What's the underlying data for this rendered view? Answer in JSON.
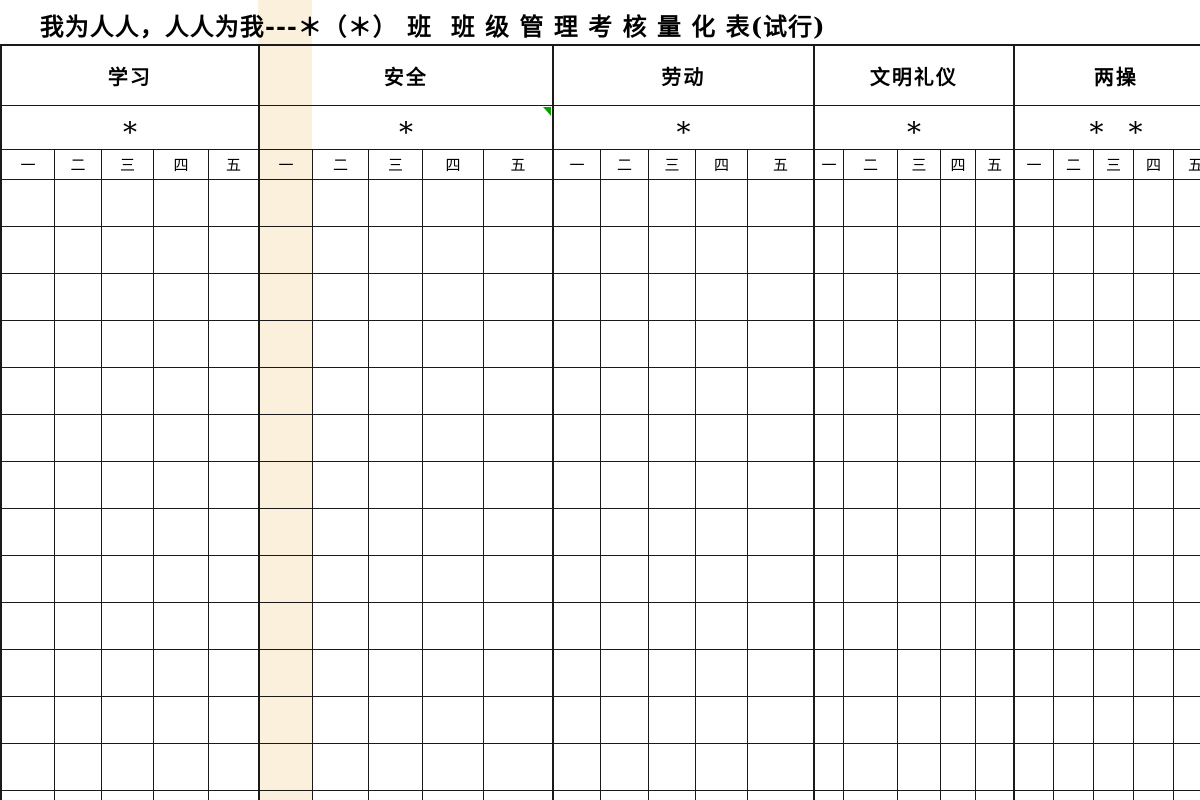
{
  "sheet_title": "我为人人，人人为我---＊（＊） 班  班 级 管 理 考 核 量 化 表(试行)",
  "table": {
    "column_groups": [
      {
        "label": "学习",
        "star": "*"
      },
      {
        "label": "安全",
        "star": "*"
      },
      {
        "label": "劳动",
        "star": "*"
      },
      {
        "label": "文明礼仪",
        "star": "*"
      },
      {
        "label": "两操",
        "star": "* *"
      }
    ],
    "day_labels": [
      "一",
      "二",
      "三",
      "四",
      "五"
    ],
    "data_row_count": 14,
    "data_cells_empty": true
  },
  "highlighted_column": {
    "group": "安全",
    "day": "一"
  },
  "cell_marker": {
    "group": "安全",
    "row": "star",
    "corner": "top-right"
  },
  "colors": {
    "column_highlight": "#faf0dc",
    "marker_green": "#0aa000",
    "grid_line": "#1a1a1a",
    "text": "#000000",
    "background": "#ffffff"
  }
}
